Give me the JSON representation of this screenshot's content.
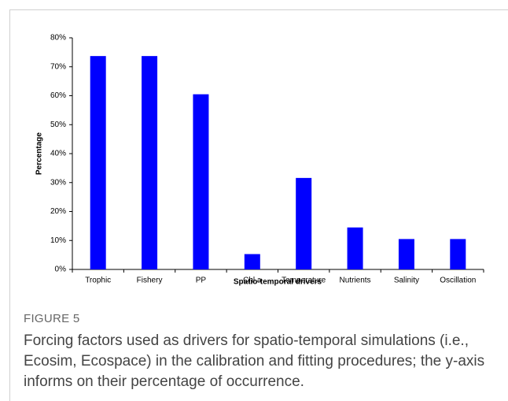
{
  "chart_data": {
    "type": "bar",
    "categories": [
      "Trophic",
      "Fishery",
      "PP",
      "Chl a",
      "Temperature",
      "Nutrients",
      "Salinity",
      "Oscillation"
    ],
    "values": [
      73.7,
      73.7,
      60.5,
      5.3,
      31.6,
      14.5,
      10.5,
      10.5
    ],
    "color": "#0000ff",
    "x_label": "Spatio-temporal drivers",
    "y_label": "Percentage",
    "ylim": [
      0,
      80
    ],
    "yticks": [
      {
        "value": 0,
        "label": "0%"
      },
      {
        "value": 10,
        "label": "10%"
      },
      {
        "value": 20,
        "label": "20%"
      },
      {
        "value": 30,
        "label": "30%"
      },
      {
        "value": 40,
        "label": "40%"
      },
      {
        "value": 50,
        "label": "50%"
      },
      {
        "value": 60,
        "label": "60%"
      },
      {
        "value": 70,
        "label": "70%"
      },
      {
        "value": 80,
        "label": "80%"
      }
    ],
    "grid": false
  },
  "figure_label": "FIGURE 5",
  "caption": "Forcing factors used as drivers for spatio-temporal simulations (i.e., Ecosim, Ecospace) in the calibration and fitting procedures; the y-axis informs on their percentage of occurrence."
}
